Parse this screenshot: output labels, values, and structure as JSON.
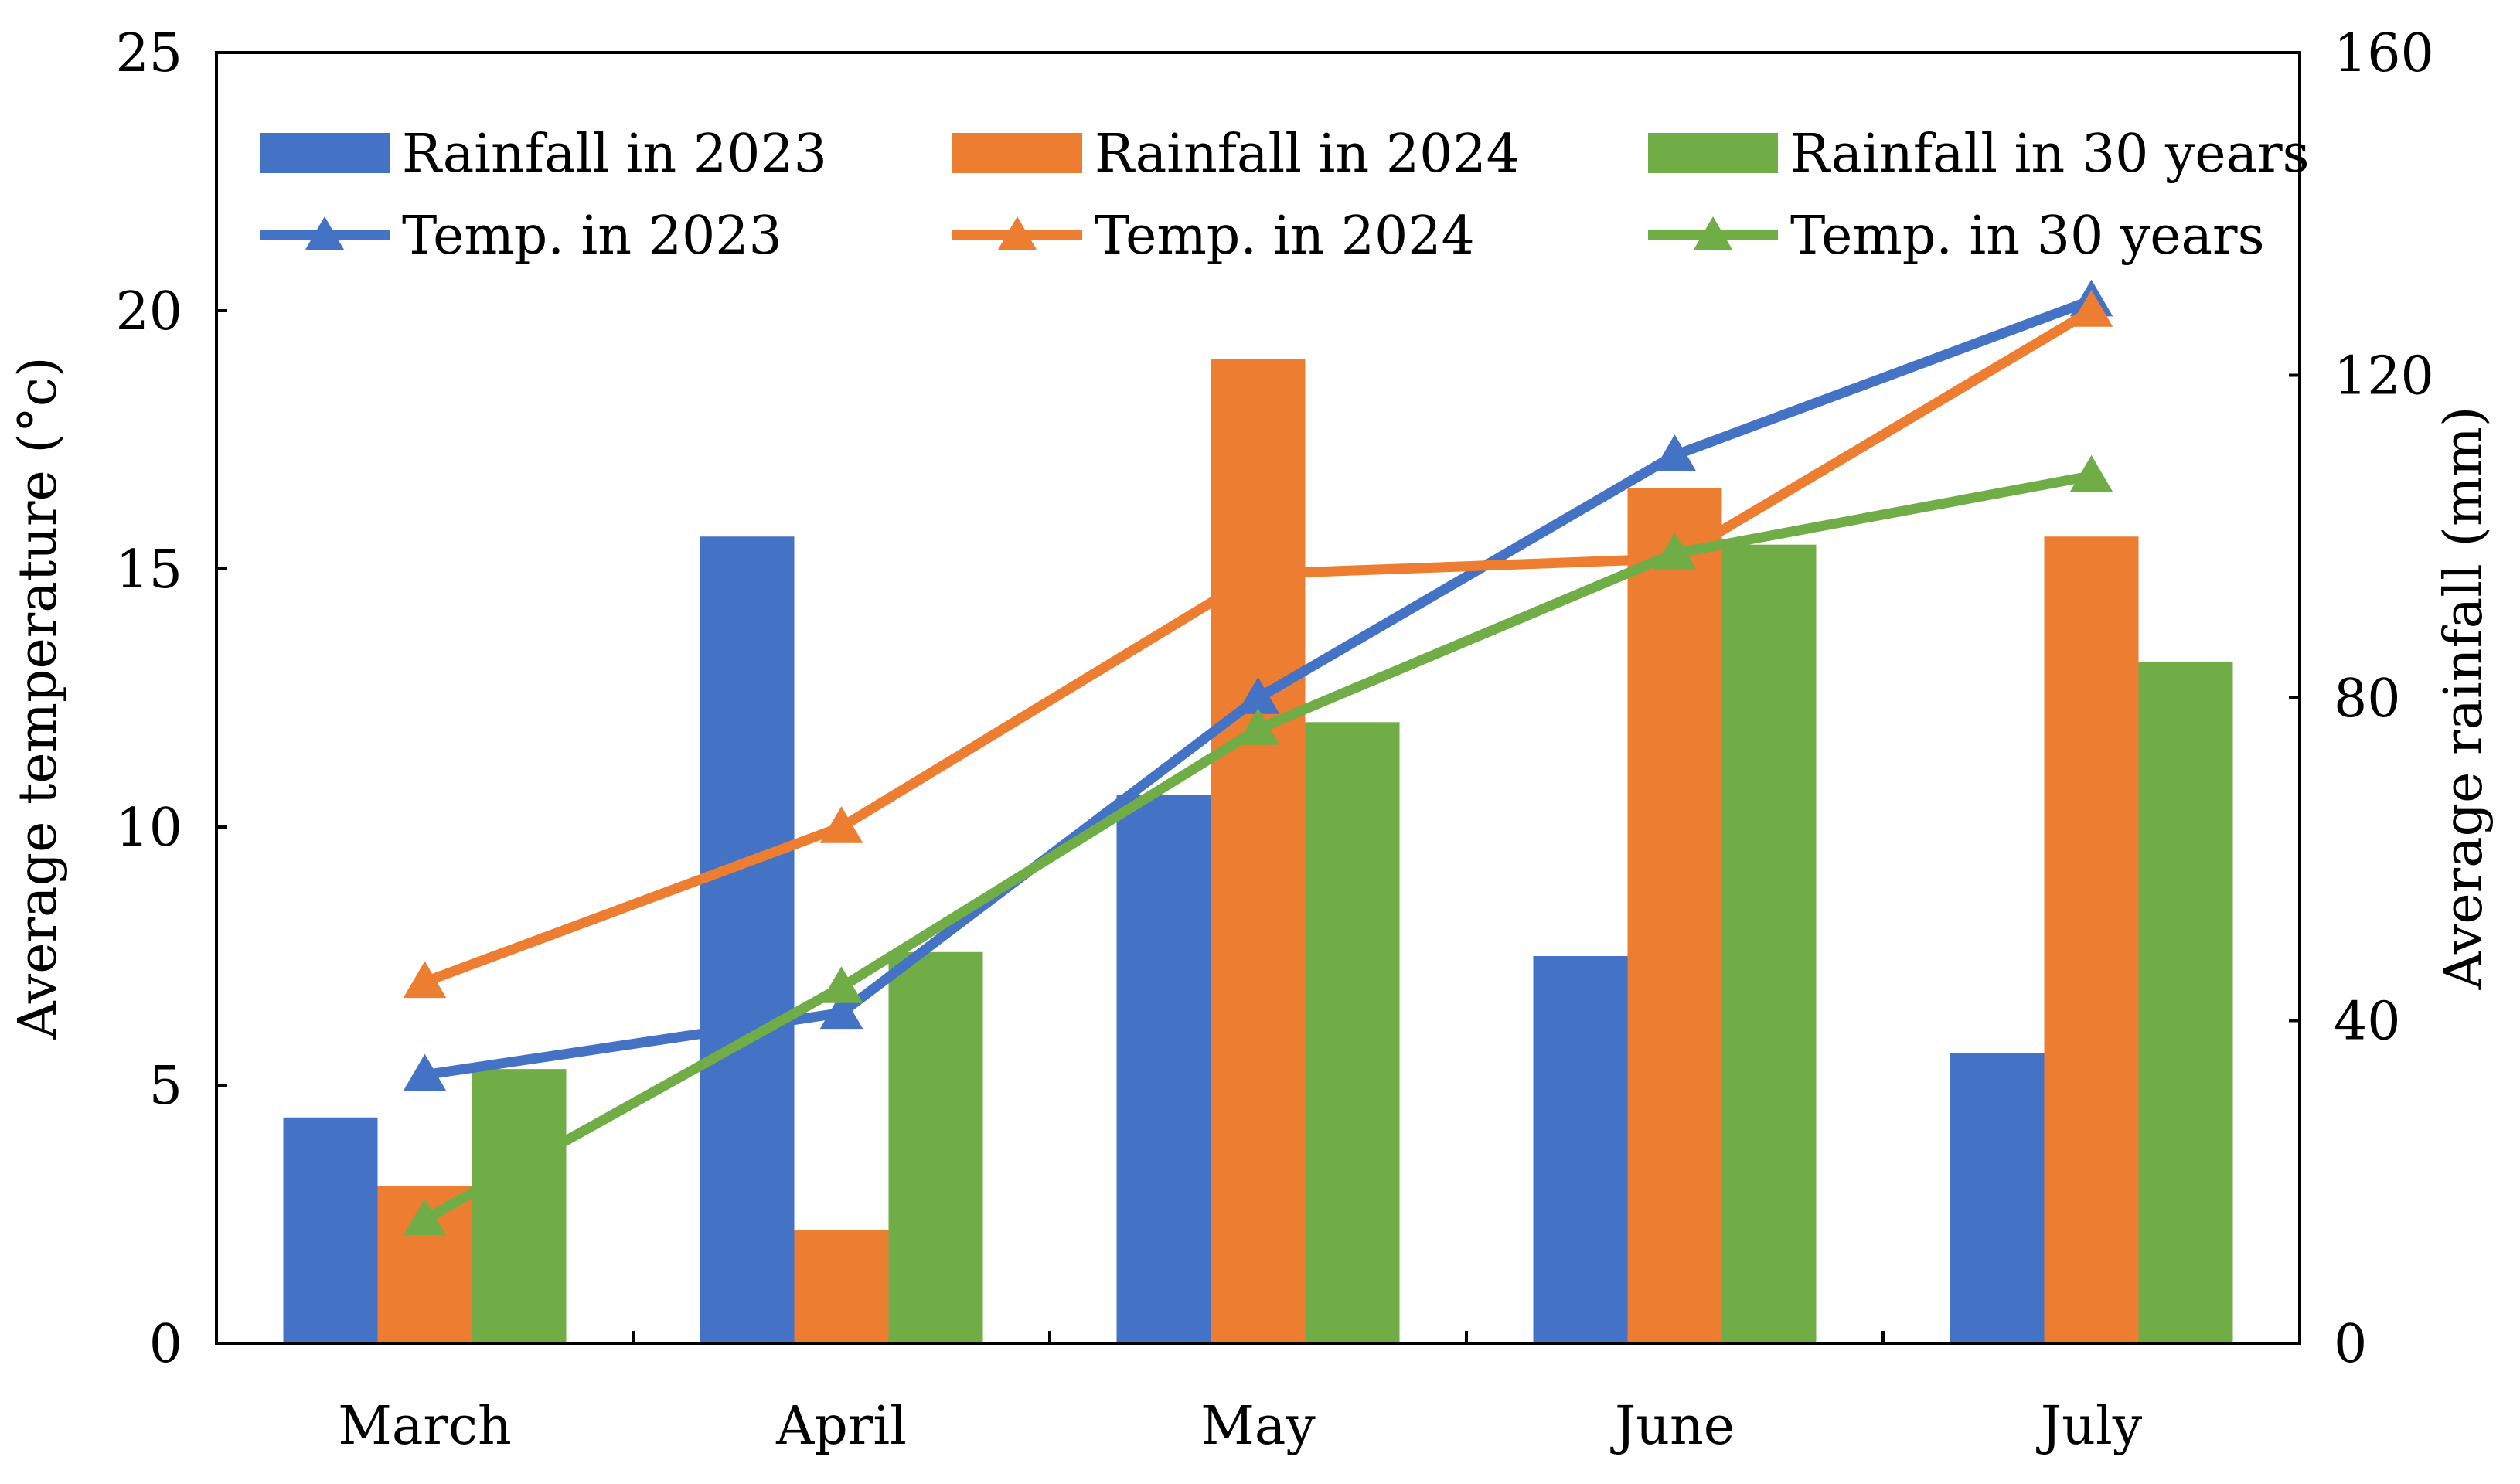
{
  "chart_data": {
    "type": "bar+line",
    "categories": [
      "March",
      "April",
      "May",
      "June",
      "July"
    ],
    "bar_series": [
      {
        "name": "Rainfall in 2023",
        "color": "#4472C4",
        "values": [
          28,
          100,
          68,
          48,
          36
        ]
      },
      {
        "name": "Rainfall in 2024",
        "color": "#ED7D31",
        "values": [
          19.5,
          14,
          122,
          106,
          100
        ]
      },
      {
        "name": "Rainfall in 30 years",
        "color": "#70AD47",
        "values": [
          34,
          48.5,
          77,
          99,
          84.5
        ]
      }
    ],
    "line_series": [
      {
        "name": "Temp. in 2023",
        "color": "#4472C4",
        "values": [
          5.2,
          6.4,
          12.5,
          17.2,
          20.2
        ]
      },
      {
        "name": "Temp. in 2024",
        "color": "#ED7D31",
        "values": [
          7.0,
          10.0,
          14.9,
          15.2,
          20.0
        ]
      },
      {
        "name": "Temp. in 30 years",
        "color": "#70AD47",
        "values": [
          2.4,
          6.9,
          11.9,
          15.3,
          16.8
        ]
      }
    ],
    "y_left": {
      "label": "Average temperature (°c)",
      "lim": [
        0,
        25
      ],
      "ticks": [
        0,
        5,
        10,
        15,
        20,
        25
      ]
    },
    "y_right": {
      "label": "Average rainfall (mm)",
      "lim": [
        0,
        160
      ],
      "ticks": [
        0,
        40,
        80,
        120,
        160
      ]
    },
    "xlabel": "",
    "legend": [
      "Rainfall in 2023",
      "Rainfall in 2024",
      "Rainfall in 30 years",
      "Temp. in 2023",
      "Temp. in 2024",
      "Temp. in 30 years"
    ],
    "legend_position": "top",
    "grid": false
  }
}
